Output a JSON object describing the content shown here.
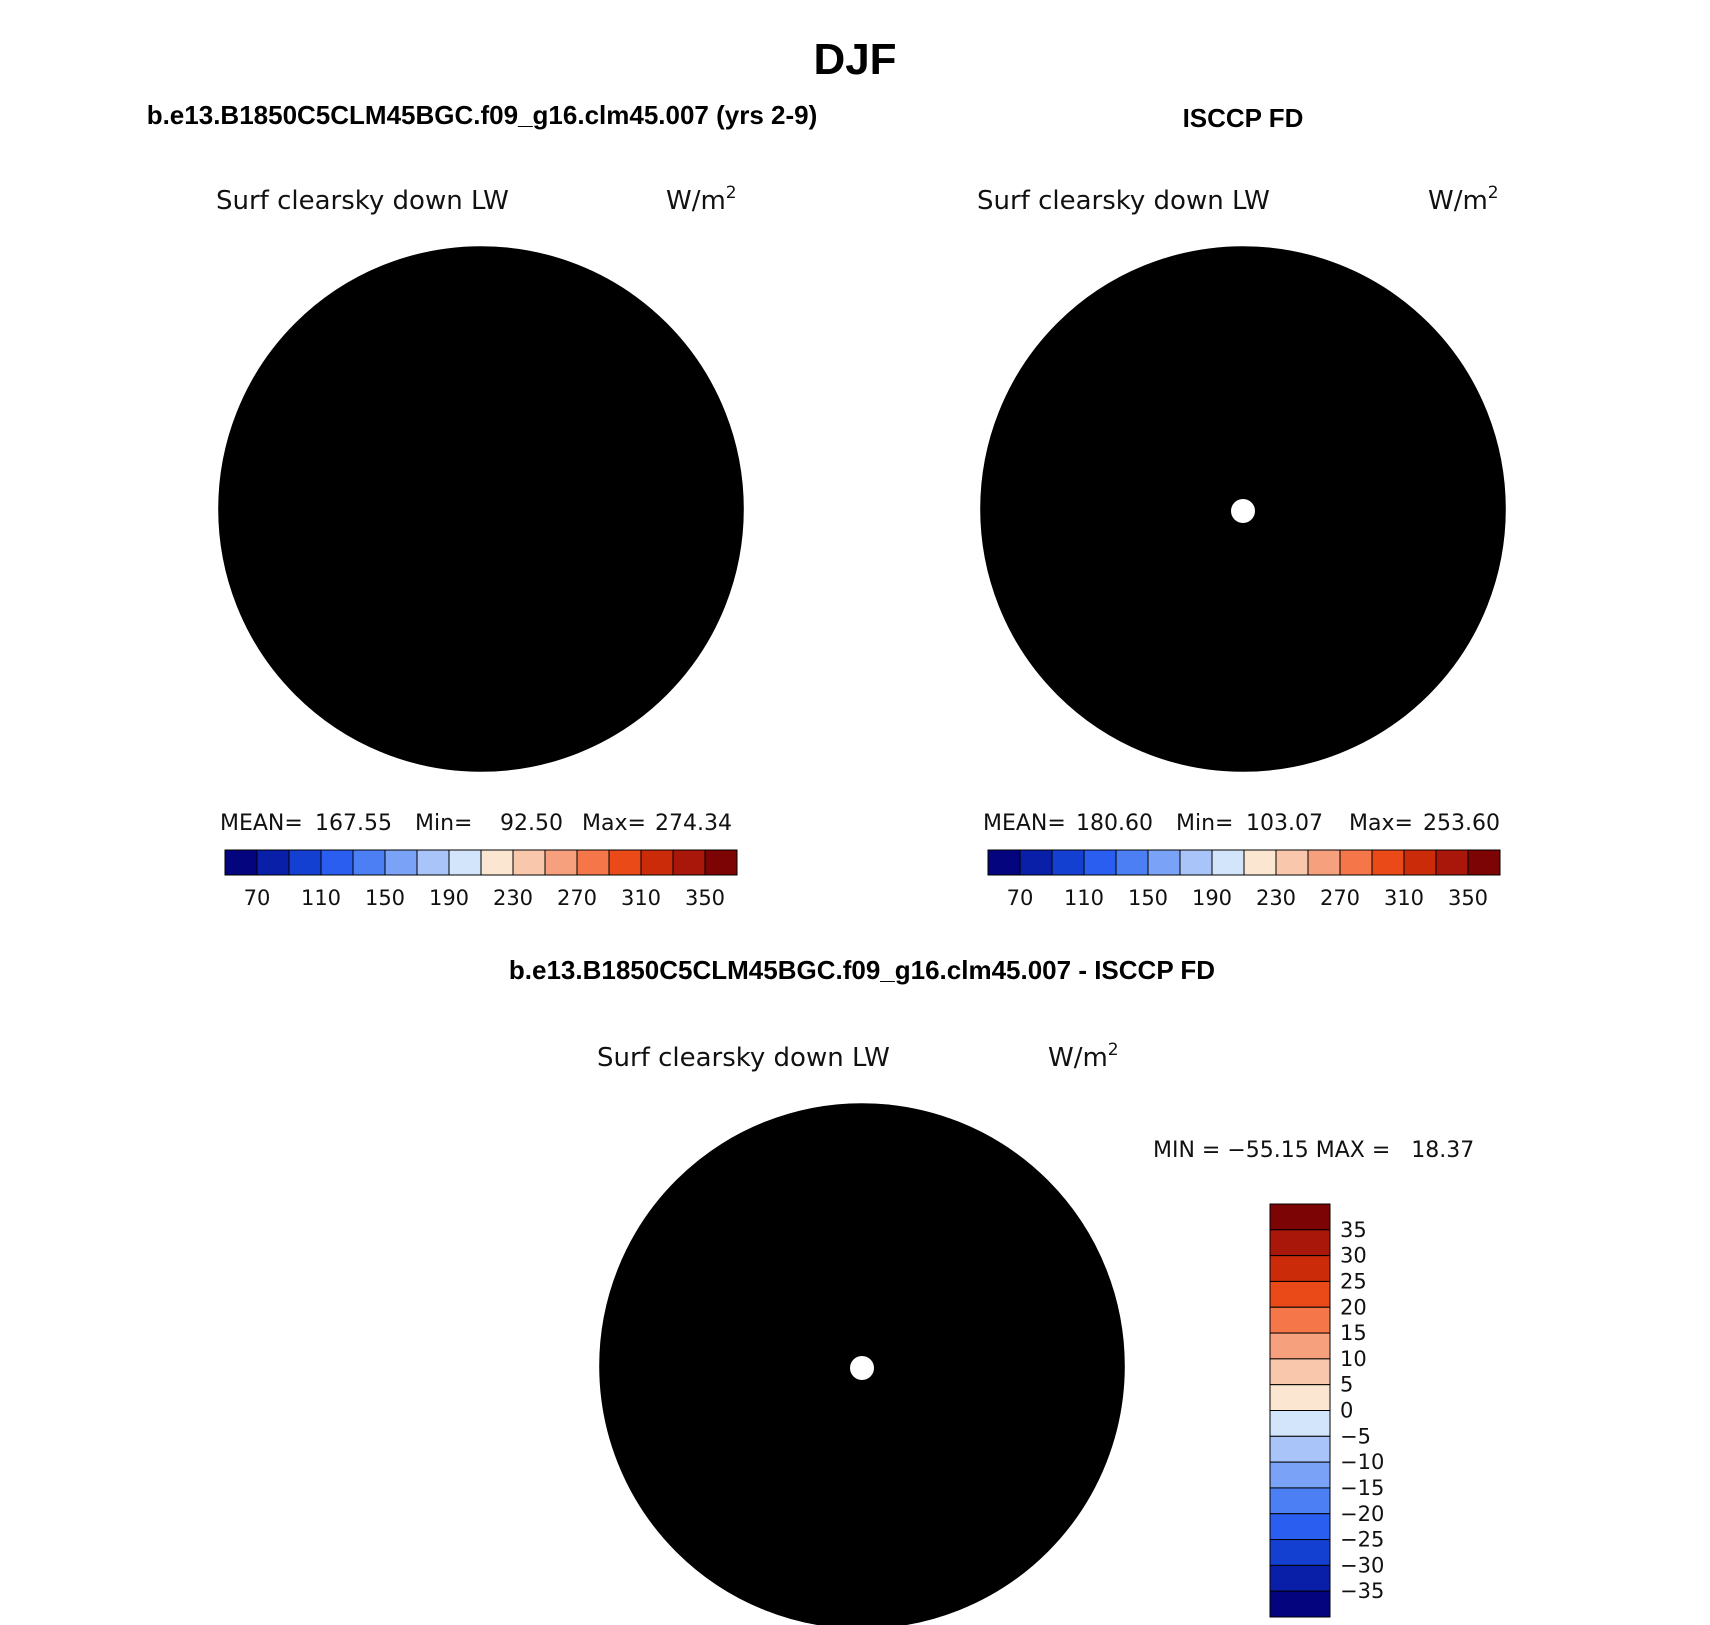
{
  "figure": {
    "season": "DJF",
    "run_title": "b.e13.B1850C5CLM45BGC.f09_g16.clm45.007 (yrs 2-9)",
    "obs_title": "ISCCP FD",
    "diff_title": "b.e13.B1850C5CLM45BGC.f09_g16.clm45.007 - ISCCP FD"
  },
  "panels": {
    "model": {
      "variable": "Surf clearsky down LW",
      "units": "W/m",
      "units_exp": "2",
      "stats": {
        "mean_label": "MEAN=",
        "mean": "167.55",
        "min_label": "Min=",
        "min": "92.50",
        "max_label": "Max=",
        "max": "274.34"
      }
    },
    "obs": {
      "variable": "Surf clearsky down LW",
      "units": "W/m",
      "units_exp": "2",
      "stats": {
        "mean_label": "MEAN=",
        "mean": "180.60",
        "min_label": "Min=",
        "min": "103.07",
        "max_label": "Max=",
        "max": "253.60"
      }
    },
    "diff": {
      "variable": "Surf clearsky down LW",
      "units": "W/m",
      "units_exp": "2",
      "stats_text": "MIN = −55.15 MAX =   18.37"
    }
  },
  "colorbars": {
    "abs": {
      "colors": [
        "#04047e",
        "#0a1fa8",
        "#1440d2",
        "#2a5ef0",
        "#4d7ff4",
        "#7aa2f6",
        "#a9c4f8",
        "#d3e5fb",
        "#fbe6d2",
        "#f9c7ab",
        "#f6a07e",
        "#f57648",
        "#ea4a18",
        "#cc2b0a",
        "#a8170a",
        "#7c0404"
      ],
      "ticks": [
        "70",
        "110",
        "150",
        "190",
        "230",
        "270",
        "310",
        "350"
      ]
    },
    "diff": {
      "colors": [
        "#7c0404",
        "#a8170a",
        "#cc2b0a",
        "#ea4a18",
        "#f57648",
        "#f6a07e",
        "#f9c7ab",
        "#fbe6d2",
        "#d3e5fb",
        "#a9c4f8",
        "#7aa2f6",
        "#4d7ff4",
        "#2a5ef0",
        "#1440d2",
        "#0a1fa8",
        "#04047e"
      ],
      "ticks": [
        "35",
        "30",
        "25",
        "20",
        "15",
        "10",
        "5",
        "0",
        "−5",
        "−10",
        "−15",
        "−20",
        "−25",
        "−30",
        "−35"
      ]
    }
  },
  "map_fields": {
    "model": {
      "base": "#4d7ff4",
      "blobs": [
        {
          "c": "#d3e5fb",
          "a": -95,
          "r": 0.86,
          "s": 0.35
        },
        {
          "c": "#a9c4f8",
          "a": 180,
          "r": 0.82,
          "s": 0.42
        },
        {
          "c": "#fbe6d2",
          "a": -125,
          "r": 1.0,
          "s": 0.45
        },
        {
          "c": "#f9c7ab",
          "a": -140,
          "r": 1.05,
          "s": 0.3
        },
        {
          "c": "#a9c4f8",
          "a": 10,
          "r": 0.92,
          "s": 0.3
        },
        {
          "c": "#d3e5fb",
          "a": 75,
          "r": 0.9,
          "s": 0.35
        },
        {
          "c": "#fbe6d2",
          "a": 95,
          "r": 1.0,
          "s": 0.5
        },
        {
          "c": "#f9c7ab",
          "a": 105,
          "r": 1.0,
          "s": 0.38
        },
        {
          "c": "#f6a07e",
          "a": 110,
          "r": 1.05,
          "s": 0.25
        },
        {
          "c": "#2a5ef0",
          "a": -20,
          "r": 0.4,
          "s": 0.3
        },
        {
          "c": "#2a5ef0",
          "a": 160,
          "r": 0.3,
          "s": 0.3
        },
        {
          "c": "#1440d2",
          "a": 130,
          "r": 0.35,
          "s": 0.14
        },
        {
          "c": "#0a1fa8",
          "a": 125,
          "r": 0.38,
          "s": 0.07
        }
      ]
    },
    "obs": {
      "base": "#7aa2f6",
      "blobs": [
        {
          "c": "#d3e5fb",
          "a": 180,
          "r": 0.88,
          "s": 0.4
        },
        {
          "c": "#fbe6d2",
          "a": -125,
          "r": 1.0,
          "s": 0.45
        },
        {
          "c": "#f9c7ab",
          "a": -140,
          "r": 1.05,
          "s": 0.3
        },
        {
          "c": "#d3e5fb",
          "a": 40,
          "r": 0.85,
          "s": 0.4
        },
        {
          "c": "#fbe6d2",
          "a": 95,
          "r": 1.0,
          "s": 0.5
        },
        {
          "c": "#f9c7ab",
          "a": 110,
          "r": 1.05,
          "s": 0.3
        },
        {
          "c": "#4d7ff4",
          "a": 170,
          "r": 0.3,
          "s": 0.35
        },
        {
          "c": "#4d7ff4",
          "a": -30,
          "r": 0.5,
          "s": 0.3
        },
        {
          "c": "#2a5ef0",
          "a": 130,
          "r": 0.38,
          "s": 0.14
        },
        {
          "c": "#1440d2",
          "a": 128,
          "r": 0.4,
          "s": 0.06
        }
      ]
    },
    "diff": {
      "base": "#2a5ef0",
      "blobs": [
        {
          "c": "#a9c4f8",
          "a": -95,
          "r": 0.9,
          "s": 0.35
        },
        {
          "c": "#fbe6d2",
          "a": -135,
          "r": 1.0,
          "s": 0.3
        },
        {
          "c": "#7aa2f6",
          "a": 170,
          "r": 0.82,
          "s": 0.3
        },
        {
          "c": "#a9c4f8",
          "a": -45,
          "r": 0.2,
          "s": 0.3
        },
        {
          "c": "#7aa2f6",
          "a": -60,
          "r": 0.45,
          "s": 0.25
        },
        {
          "c": "#1440d2",
          "a": 0,
          "r": 0.55,
          "s": 0.3
        },
        {
          "c": "#d3e5fb",
          "a": 50,
          "r": 0.95,
          "s": 0.3
        },
        {
          "c": "#fbe6d2",
          "a": 125,
          "r": 0.9,
          "s": 0.45
        },
        {
          "c": "#f9c7ab",
          "a": 120,
          "r": 0.95,
          "s": 0.35
        },
        {
          "c": "#f6a07e",
          "a": 100,
          "r": 1.02,
          "s": 0.22
        },
        {
          "c": "#f6a07e",
          "a": 150,
          "r": 0.72,
          "s": 0.08
        },
        {
          "c": "#04047e",
          "a": 95,
          "r": 0.52,
          "s": 0.05
        },
        {
          "c": "#0a1fa8",
          "a": 120,
          "r": 0.48,
          "s": 0.1
        }
      ]
    }
  }
}
